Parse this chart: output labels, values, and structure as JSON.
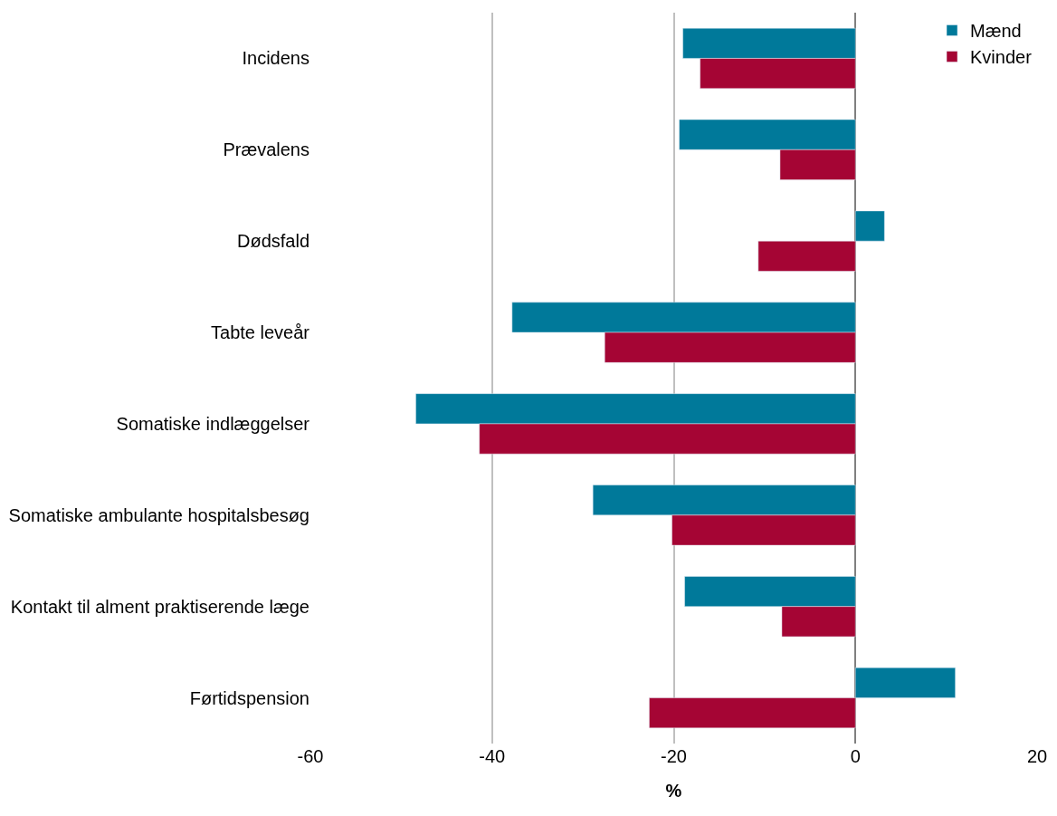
{
  "chart_data": {
    "type": "bar",
    "orientation": "horizontal",
    "xlabel": "%",
    "categories": [
      "Incidens",
      "Prævalens",
      "Dødsfald",
      "Tabte leveår",
      "Somatiske indlæggelser",
      "Somatiske ambulante hospitalsbesøg",
      "Kontakt til alment praktiserende læge",
      "Førtidspension"
    ],
    "series": [
      {
        "name": "Mænd",
        "color": "#00799a",
        "values": [
          -19.0,
          -19.4,
          3.2,
          -37.8,
          -48.4,
          -28.9,
          -18.8,
          11.0
        ]
      },
      {
        "name": "Kvinder",
        "color": "#a50534",
        "values": [
          -17.1,
          -8.3,
          -10.7,
          -27.6,
          -41.4,
          -20.2,
          -8.1,
          -22.7
        ]
      }
    ],
    "xlim": [
      -60,
      20
    ],
    "xticks": [
      -60,
      -40,
      -20,
      0,
      20
    ],
    "grid": "x",
    "legend": "top right"
  }
}
